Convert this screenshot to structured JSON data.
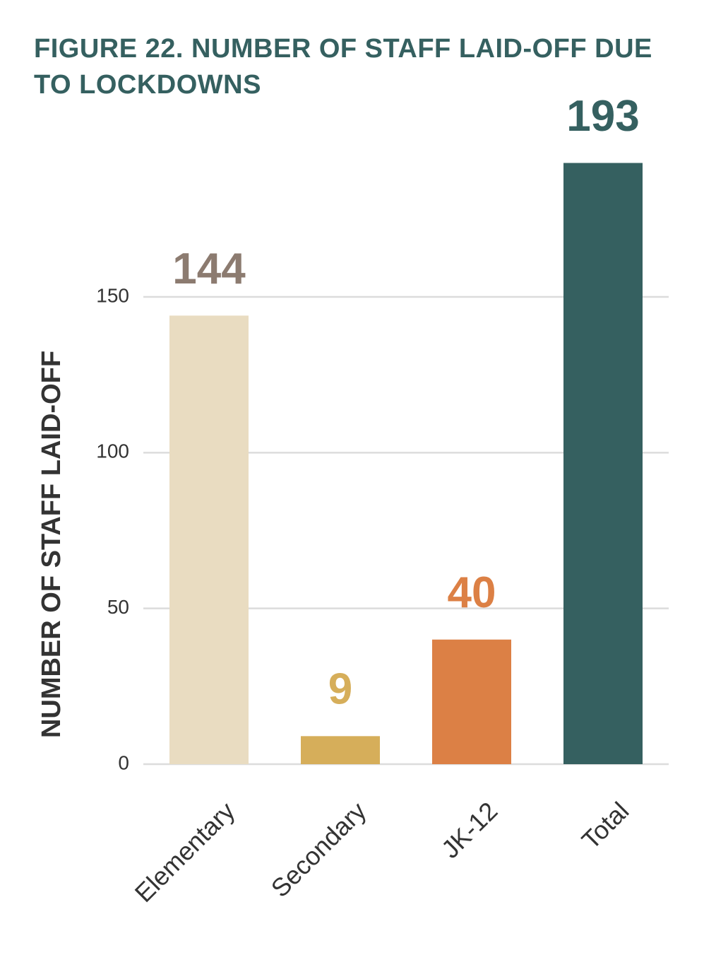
{
  "chart_data": {
    "type": "bar",
    "title": "FIGURE 22. NUMBER OF STAFF LAID-OFF DUE TO LOCKDOWNS",
    "y_label": "NUMBER OF STAFF LAID-OFF",
    "categories": [
      "Elementary",
      "Secondary",
      "JK-12",
      "Total"
    ],
    "values": [
      144,
      9,
      40,
      193
    ],
    "colors": [
      "#e9dcc1",
      "#d6ae5a",
      "#dc8045",
      "#356060"
    ],
    "label_colors": [
      "#8c7b70",
      "#d6ae5a",
      "#dc8045",
      "#356060"
    ],
    "ylim": [
      0,
      200
    ],
    "yticks": [
      0,
      50,
      100,
      150
    ],
    "grid": true
  }
}
